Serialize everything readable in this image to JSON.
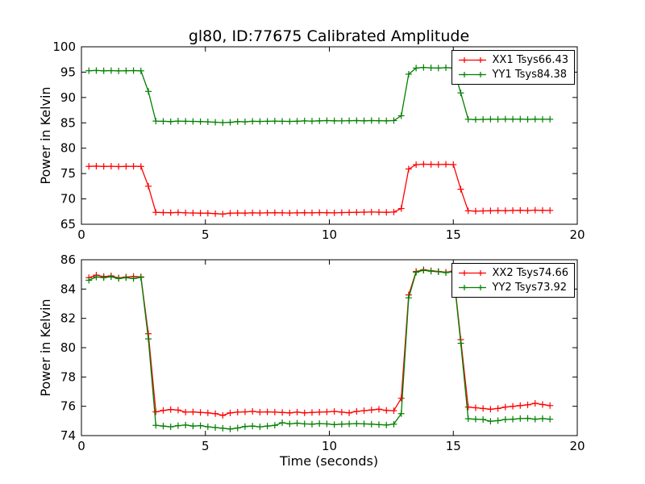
{
  "figure": {
    "background": "#ffffff",
    "axis_color": "#000000"
  },
  "chart_data": [
    {
      "type": "line",
      "title": "gl80, ID:77675 Calibrated Amplitude",
      "xlabel": "",
      "ylabel": "Power in Kelvin",
      "xlim": [
        0,
        20
      ],
      "ylim": [
        65,
        100
      ],
      "xticks": [
        0,
        5,
        10,
        15,
        20
      ],
      "yticks": [
        65,
        70,
        75,
        80,
        85,
        90,
        95,
        100
      ],
      "grid": false,
      "marker": "+",
      "legend_position": "upper right",
      "x": [
        0.3,
        0.6,
        0.9,
        1.2,
        1.5,
        1.8,
        2.1,
        2.4,
        2.7,
        3.0,
        3.3,
        3.6,
        3.9,
        4.2,
        4.5,
        4.8,
        5.1,
        5.4,
        5.7,
        6.0,
        6.3,
        6.6,
        6.9,
        7.2,
        7.5,
        7.8,
        8.1,
        8.4,
        8.7,
        9.0,
        9.3,
        9.6,
        9.9,
        10.2,
        10.5,
        10.8,
        11.1,
        11.4,
        11.7,
        12.0,
        12.3,
        12.6,
        12.9,
        13.2,
        13.5,
        13.8,
        14.1,
        14.4,
        14.7,
        15.0,
        15.3,
        15.6,
        15.9,
        16.2,
        16.5,
        16.8,
        17.1,
        17.4,
        17.7,
        18.0,
        18.3,
        18.6,
        18.9
      ],
      "series": [
        {
          "name": "XX1 Tsys66.43",
          "color": "#ff0000",
          "values": [
            76.42,
            76.46,
            76.4,
            76.44,
            76.38,
            76.41,
            76.44,
            76.4,
            72.5,
            67.35,
            67.3,
            67.28,
            67.32,
            67.25,
            67.22,
            67.2,
            67.18,
            67.1,
            67.0,
            67.18,
            67.22,
            67.2,
            67.25,
            67.22,
            67.25,
            67.28,
            67.25,
            67.22,
            67.25,
            67.28,
            67.25,
            67.3,
            67.28,
            67.25,
            67.3,
            67.32,
            67.35,
            67.38,
            67.4,
            67.38,
            67.35,
            67.4,
            68.1,
            75.9,
            76.75,
            76.85,
            76.8,
            76.78,
            76.83,
            76.76,
            71.9,
            67.65,
            67.6,
            67.63,
            67.66,
            67.7,
            67.68,
            67.72,
            67.76,
            67.7,
            67.78,
            67.74,
            67.72
          ]
        },
        {
          "name": "YY1 Tsys84.38",
          "color": "#008000",
          "values": [
            95.28,
            95.32,
            95.26,
            95.3,
            95.24,
            95.28,
            95.3,
            95.26,
            91.2,
            85.35,
            85.3,
            85.25,
            85.35,
            85.3,
            85.28,
            85.25,
            85.2,
            85.12,
            85.05,
            85.1,
            85.25,
            85.2,
            85.3,
            85.28,
            85.3,
            85.35,
            85.3,
            85.28,
            85.32,
            85.38,
            85.35,
            85.4,
            85.45,
            85.4,
            85.38,
            85.42,
            85.45,
            85.4,
            85.45,
            85.42,
            85.4,
            85.45,
            86.4,
            94.6,
            95.8,
            95.92,
            95.85,
            95.8,
            95.88,
            95.82,
            90.9,
            85.7,
            85.65,
            85.68,
            85.72,
            85.7,
            85.75,
            85.72,
            85.74,
            85.68,
            85.73,
            85.7,
            85.71
          ]
        }
      ]
    },
    {
      "type": "line",
      "title": "",
      "xlabel": "Time (seconds)",
      "ylabel": "Power in Kelvin",
      "xlim": [
        0,
        20
      ],
      "ylim": [
        74,
        86
      ],
      "xticks": [
        0,
        5,
        10,
        15,
        20
      ],
      "yticks": [
        74,
        76,
        78,
        80,
        82,
        84,
        86
      ],
      "grid": false,
      "marker": "+",
      "legend_position": "upper right",
      "x": [
        0.3,
        0.6,
        0.9,
        1.2,
        1.5,
        1.8,
        2.1,
        2.4,
        2.7,
        3.0,
        3.3,
        3.6,
        3.9,
        4.2,
        4.5,
        4.8,
        5.1,
        5.4,
        5.7,
        6.0,
        6.3,
        6.6,
        6.9,
        7.2,
        7.5,
        7.8,
        8.1,
        8.4,
        8.7,
        9.0,
        9.3,
        9.6,
        9.9,
        10.2,
        10.5,
        10.8,
        11.1,
        11.4,
        11.7,
        12.0,
        12.3,
        12.6,
        12.9,
        13.2,
        13.5,
        13.8,
        14.1,
        14.4,
        14.7,
        15.0,
        15.3,
        15.6,
        15.9,
        16.2,
        16.5,
        16.8,
        17.1,
        17.4,
        17.7,
        18.0,
        18.3,
        18.6,
        18.9
      ],
      "series": [
        {
          "name": "XX2 Tsys74.66",
          "color": "#ff0000",
          "values": [
            84.78,
            84.95,
            84.85,
            84.9,
            84.76,
            84.82,
            84.86,
            84.83,
            80.95,
            75.62,
            75.72,
            75.78,
            75.74,
            75.6,
            75.62,
            75.58,
            75.55,
            75.5,
            75.38,
            75.55,
            75.6,
            75.62,
            75.65,
            75.6,
            75.62,
            75.6,
            75.58,
            75.55,
            75.6,
            75.55,
            75.58,
            75.6,
            75.62,
            75.65,
            75.6,
            75.55,
            75.65,
            75.7,
            75.75,
            75.8,
            75.72,
            75.7,
            76.55,
            83.6,
            85.2,
            85.32,
            85.25,
            85.2,
            85.15,
            85.22,
            80.55,
            75.95,
            75.9,
            75.85,
            75.8,
            75.85,
            75.95,
            76.0,
            76.05,
            76.1,
            76.2,
            76.12,
            76.05
          ]
        },
        {
          "name": "YY2 Tsys73.92",
          "color": "#008000",
          "values": [
            84.6,
            84.82,
            84.78,
            84.84,
            84.72,
            84.78,
            84.72,
            84.8,
            80.6,
            74.7,
            74.65,
            74.6,
            74.68,
            74.72,
            74.65,
            74.68,
            74.6,
            74.55,
            74.5,
            74.45,
            74.52,
            74.62,
            74.65,
            74.6,
            74.65,
            74.7,
            74.88,
            74.8,
            74.85,
            74.8,
            74.78,
            74.82,
            74.8,
            74.75,
            74.78,
            74.8,
            74.82,
            74.8,
            74.78,
            74.75,
            74.72,
            74.78,
            75.5,
            83.4,
            85.15,
            85.28,
            85.22,
            85.18,
            85.12,
            85.18,
            80.3,
            75.15,
            75.12,
            75.1,
            74.98,
            75.02,
            75.1,
            75.12,
            75.16,
            75.18,
            75.12,
            75.16,
            75.12
          ]
        }
      ]
    }
  ]
}
